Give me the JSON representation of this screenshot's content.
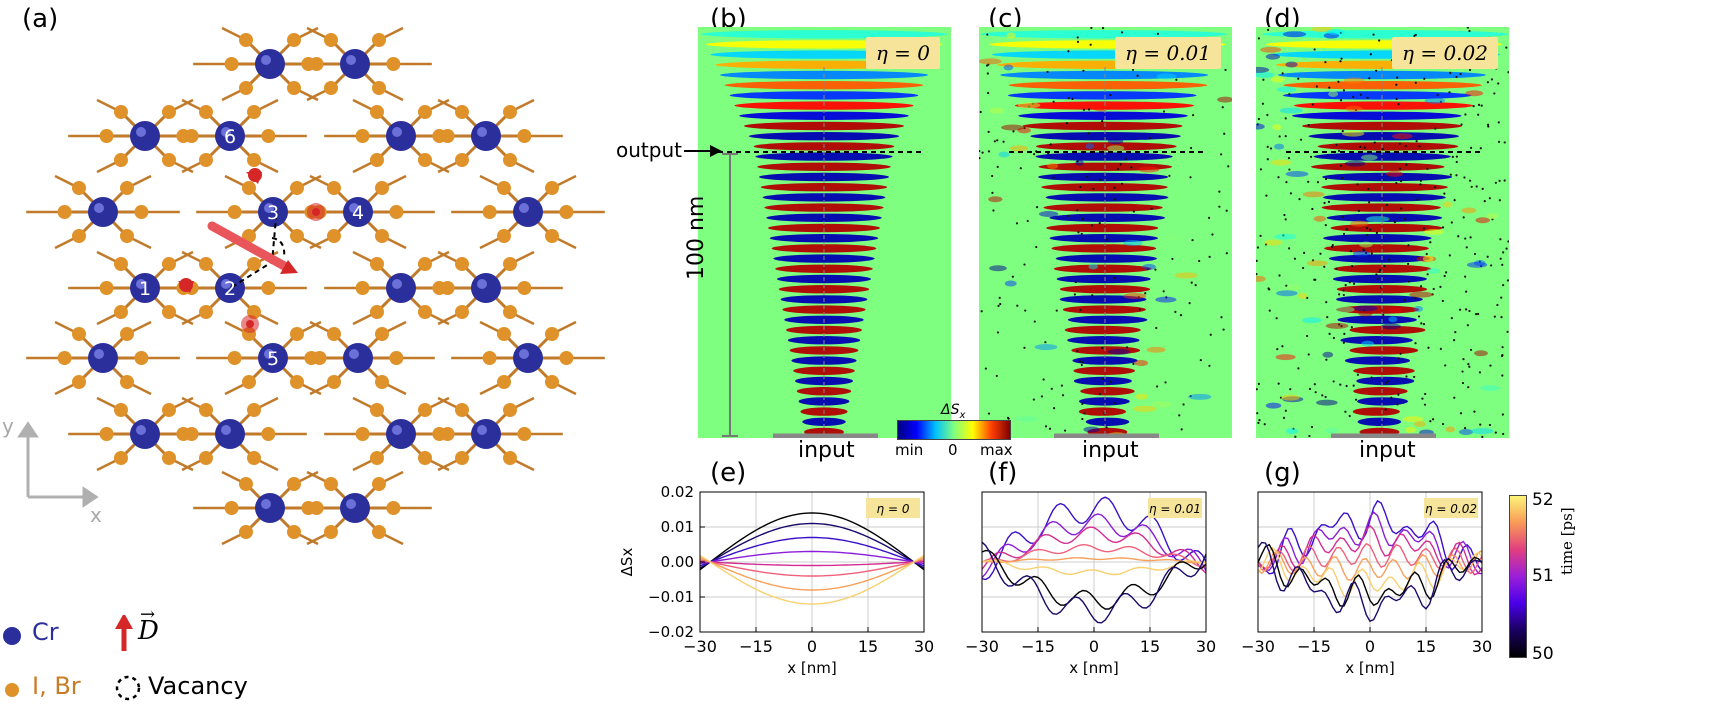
{
  "panel_labels": {
    "a": "(a)",
    "b": "(b)",
    "c": "(c)",
    "d": "(d)",
    "e": "(e)",
    "f": "(f)",
    "g": "(g)"
  },
  "lattice": {
    "site_labels": [
      "1",
      "2",
      "3",
      "4",
      "5",
      "6"
    ],
    "axis_x": "x",
    "axis_y": "y",
    "legend": {
      "cr": "Cr",
      "halide": "I, Br",
      "d_vector": "D",
      "vacancy": "Vacancy"
    },
    "colors": {
      "cr": "#2a2f9c",
      "halide": "#e0922a",
      "bond": "#c07a2a",
      "vector": "#d62728"
    }
  },
  "simulation": {
    "output_label": "output",
    "scale_label": "100 nm",
    "input_label": "input",
    "eta": [
      "η = 0",
      "η = 0.01",
      "η = 0.02"
    ],
    "colorbar": {
      "title": "ΔS",
      "title_sub": "x",
      "min": "min",
      "zero": "0",
      "max": "max"
    }
  },
  "chart_data": [
    {
      "type": "line",
      "title": "",
      "eta_label": "η = 0",
      "xlabel": "x [nm]",
      "ylabel": "ΔS",
      "ylabel_sub": "x",
      "xlim": [
        -30,
        30
      ],
      "ylim": [
        -0.02,
        0.02
      ],
      "xticks": [
        "−30",
        "−15",
        "0",
        "15",
        "30"
      ],
      "yticks": [
        "0.02",
        "0.01",
        "0.00",
        "−0.01",
        "−0.02"
      ],
      "series_amplitudes": [
        0.014,
        0.011,
        0.007,
        0.003,
        -0.001,
        -0.004,
        -0.008,
        -0.012
      ]
    },
    {
      "type": "line",
      "title": "",
      "eta_label": "η = 0.01",
      "xlabel": "x [nm]",
      "xlim": [
        -30,
        30
      ],
      "ylim": [
        -0.02,
        0.02
      ],
      "xticks": [
        "−30",
        "−15",
        "0",
        "15",
        "30"
      ],
      "series_amplitudes": [
        0.015,
        0.011,
        0.008,
        0.004,
        0.001,
        -0.003,
        -0.011,
        -0.014
      ]
    },
    {
      "type": "line",
      "title": "",
      "eta_label": "η = 0.02",
      "xlabel": "x [nm]",
      "xlim": [
        -30,
        30
      ],
      "ylim": [
        -0.02,
        0.02
      ],
      "xticks": [
        "−30",
        "−15",
        "0",
        "15",
        "30"
      ],
      "series_amplitudes": [
        0.012,
        0.009,
        0.006,
        0.002,
        -0.002,
        -0.006,
        -0.009,
        -0.012
      ]
    }
  ],
  "time_colorbar": {
    "label": "time [ps]",
    "ticks": [
      "52",
      "51",
      "50"
    ]
  }
}
